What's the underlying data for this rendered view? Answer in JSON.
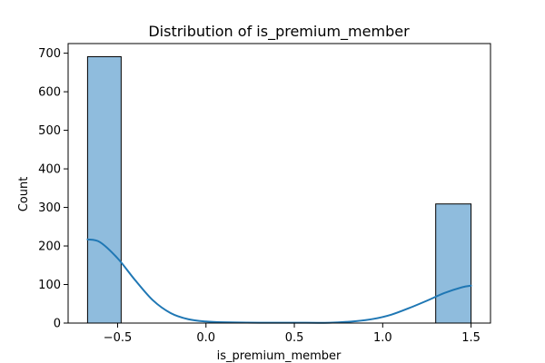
{
  "chart_data": {
    "type": "bar",
    "title": "Distribution of is_premium_member",
    "xlabel": "is_premium_member",
    "ylabel": "Count",
    "xlim": [
      -0.78,
      1.61
    ],
    "ylim": [
      0,
      725
    ],
    "x_ticks": [
      -0.5,
      0.0,
      0.5,
      1.0,
      1.5
    ],
    "x_tick_labels": [
      "−0.5",
      "0.0",
      "0.5",
      "1.0",
      "1.5"
    ],
    "y_ticks": [
      0,
      100,
      200,
      300,
      400,
      500,
      600,
      700
    ],
    "y_tick_labels": [
      "0",
      "100",
      "200",
      "300",
      "400",
      "500",
      "600",
      "700"
    ],
    "bins": [
      {
        "x0": -0.67,
        "x1": -0.48,
        "count": 691
      },
      {
        "x0": 1.3,
        "x1": 1.5,
        "count": 309
      }
    ],
    "kde": [
      [
        -0.67,
        217
      ],
      [
        -0.6,
        210
      ],
      [
        -0.5,
        168
      ],
      [
        -0.4,
        111
      ],
      [
        -0.3,
        59
      ],
      [
        -0.2,
        26
      ],
      [
        -0.1,
        10
      ],
      [
        0.0,
        4
      ],
      [
        0.1,
        2
      ],
      [
        0.3,
        1
      ],
      [
        0.5,
        1
      ],
      [
        0.7,
        1
      ],
      [
        0.85,
        5
      ],
      [
        0.95,
        11
      ],
      [
        1.05,
        22
      ],
      [
        1.15,
        39
      ],
      [
        1.25,
        58
      ],
      [
        1.35,
        78
      ],
      [
        1.45,
        93
      ],
      [
        1.5,
        97
      ]
    ],
    "grid": false,
    "colors": {
      "bar_fill": "#8fbcdd",
      "bar_edge": "#000000",
      "kde_line": "#1f77b4"
    }
  }
}
